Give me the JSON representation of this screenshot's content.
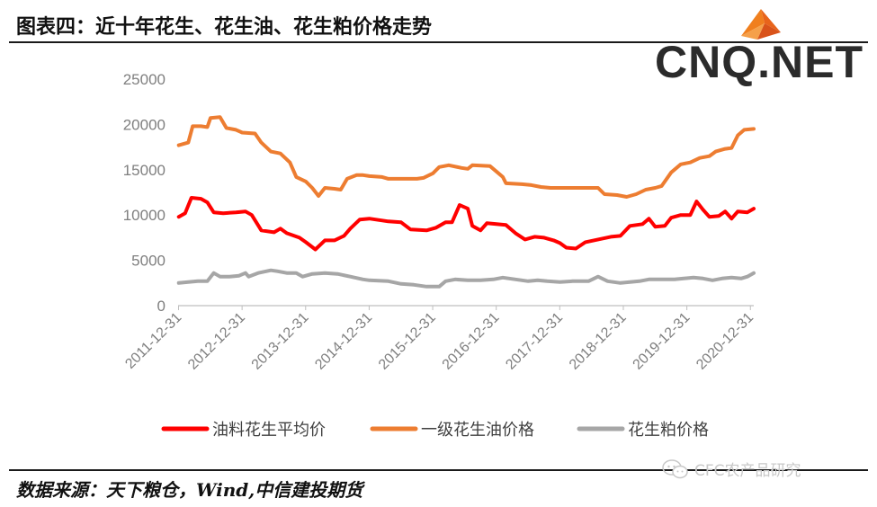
{
  "header": {
    "title": "图表四：近十年花生、花生油、花生粕价格走势",
    "logo_text": "CNQ.NET"
  },
  "footer": {
    "source": "数据来源：天下粮仓，Wind,中信建投期货",
    "watermark": "CFC农产品研究"
  },
  "icons": {
    "logo": "origami-bird-logo",
    "watermark": "wechat-icon"
  },
  "colors": {
    "oil_peanut": "#ff0000",
    "peanut_oil": "#ed7d31",
    "peanut_meal": "#a6a6a6",
    "axis": "#bfbfbf",
    "tick_text": "#7f7f7f"
  },
  "chart_data": {
    "type": "line",
    "title": "",
    "ylim": [
      0,
      25000
    ],
    "yticks": [
      "0",
      "5000",
      "10000",
      "15000",
      "20000",
      "25000"
    ],
    "xticks": [
      "2011-12-31",
      "2012-12-31",
      "2013-12-31",
      "2014-12-31",
      "2015-12-31",
      "2016-12-31",
      "2017-12-31",
      "2018-12-31",
      "2019-12-31",
      "2020-12-31"
    ],
    "x_range": [
      2011.99,
      2021.05
    ],
    "legend_position": "bottom",
    "series": [
      {
        "name": "油料花生平均价",
        "color": "#ff0000",
        "points": [
          [
            2012.0,
            9800
          ],
          [
            2012.1,
            10200
          ],
          [
            2012.2,
            11900
          ],
          [
            2012.35,
            11800
          ],
          [
            2012.45,
            11400
          ],
          [
            2012.55,
            10300
          ],
          [
            2012.7,
            10200
          ],
          [
            2012.9,
            10300
          ],
          [
            2013.05,
            10400
          ],
          [
            2013.15,
            10000
          ],
          [
            2013.3,
            8300
          ],
          [
            2013.5,
            8100
          ],
          [
            2013.6,
            8500
          ],
          [
            2013.7,
            8000
          ],
          [
            2013.9,
            7500
          ],
          [
            2014.0,
            7000
          ],
          [
            2014.15,
            6200
          ],
          [
            2014.3,
            7200
          ],
          [
            2014.45,
            7200
          ],
          [
            2014.6,
            7700
          ],
          [
            2014.7,
            8500
          ],
          [
            2014.85,
            9500
          ],
          [
            2015.0,
            9600
          ],
          [
            2015.3,
            9300
          ],
          [
            2015.5,
            9200
          ],
          [
            2015.65,
            8400
          ],
          [
            2015.9,
            8300
          ],
          [
            2016.05,
            8600
          ],
          [
            2016.2,
            9200
          ],
          [
            2016.3,
            9200
          ],
          [
            2016.42,
            11100
          ],
          [
            2016.55,
            10700
          ],
          [
            2016.62,
            8800
          ],
          [
            2016.75,
            8300
          ],
          [
            2016.85,
            9100
          ],
          [
            2017.0,
            9000
          ],
          [
            2017.15,
            8900
          ],
          [
            2017.3,
            8000
          ],
          [
            2017.45,
            7300
          ],
          [
            2017.6,
            7600
          ],
          [
            2017.75,
            7500
          ],
          [
            2017.9,
            7200
          ],
          [
            2018.0,
            6900
          ],
          [
            2018.1,
            6400
          ],
          [
            2018.25,
            6300
          ],
          [
            2018.4,
            7000
          ],
          [
            2018.6,
            7300
          ],
          [
            2018.8,
            7600
          ],
          [
            2018.95,
            7700
          ],
          [
            2019.1,
            8800
          ],
          [
            2019.3,
            9000
          ],
          [
            2019.4,
            9600
          ],
          [
            2019.5,
            8700
          ],
          [
            2019.65,
            8800
          ],
          [
            2019.75,
            9700
          ],
          [
            2019.9,
            10000
          ],
          [
            2020.05,
            10000
          ],
          [
            2020.15,
            11500
          ],
          [
            2020.25,
            10600
          ],
          [
            2020.35,
            9800
          ],
          [
            2020.5,
            9900
          ],
          [
            2020.6,
            10400
          ],
          [
            2020.7,
            9600
          ],
          [
            2020.8,
            10400
          ],
          [
            2020.95,
            10300
          ],
          [
            2021.05,
            10700
          ]
        ]
      },
      {
        "name": "一级花生油价格",
        "color": "#ed7d31",
        "points": [
          [
            2012.0,
            17700
          ],
          [
            2012.15,
            18000
          ],
          [
            2012.22,
            19800
          ],
          [
            2012.35,
            19800
          ],
          [
            2012.45,
            19700
          ],
          [
            2012.5,
            20700
          ],
          [
            2012.65,
            20800
          ],
          [
            2012.75,
            19600
          ],
          [
            2012.9,
            19400
          ],
          [
            2013.0,
            19100
          ],
          [
            2013.2,
            19000
          ],
          [
            2013.3,
            18000
          ],
          [
            2013.45,
            17000
          ],
          [
            2013.6,
            16800
          ],
          [
            2013.75,
            15800
          ],
          [
            2013.85,
            14200
          ],
          [
            2014.0,
            13700
          ],
          [
            2014.1,
            13000
          ],
          [
            2014.2,
            12100
          ],
          [
            2014.3,
            13000
          ],
          [
            2014.45,
            12900
          ],
          [
            2014.55,
            12800
          ],
          [
            2014.65,
            14000
          ],
          [
            2014.8,
            14400
          ],
          [
            2014.9,
            14400
          ],
          [
            2015.0,
            14300
          ],
          [
            2015.2,
            14200
          ],
          [
            2015.3,
            14000
          ],
          [
            2015.55,
            14000
          ],
          [
            2015.75,
            14000
          ],
          [
            2015.85,
            14100
          ],
          [
            2016.0,
            14600
          ],
          [
            2016.1,
            15300
          ],
          [
            2016.25,
            15500
          ],
          [
            2016.45,
            15200
          ],
          [
            2016.55,
            15100
          ],
          [
            2016.62,
            15500
          ],
          [
            2016.9,
            15400
          ],
          [
            2017.0,
            14800
          ],
          [
            2017.1,
            14200
          ],
          [
            2017.15,
            13500
          ],
          [
            2017.4,
            13400
          ],
          [
            2017.55,
            13300
          ],
          [
            2017.7,
            13100
          ],
          [
            2017.85,
            13000
          ],
          [
            2018.0,
            13000
          ],
          [
            2018.4,
            13000
          ],
          [
            2018.6,
            13000
          ],
          [
            2018.7,
            12300
          ],
          [
            2018.9,
            12200
          ],
          [
            2019.05,
            12000
          ],
          [
            2019.2,
            12300
          ],
          [
            2019.35,
            12800
          ],
          [
            2019.5,
            13000
          ],
          [
            2019.6,
            13200
          ],
          [
            2019.75,
            14700
          ],
          [
            2019.9,
            15600
          ],
          [
            2020.05,
            15800
          ],
          [
            2020.2,
            16300
          ],
          [
            2020.35,
            16500
          ],
          [
            2020.45,
            17000
          ],
          [
            2020.6,
            17300
          ],
          [
            2020.7,
            17400
          ],
          [
            2020.8,
            18800
          ],
          [
            2020.9,
            19400
          ],
          [
            2021.05,
            19500
          ]
        ]
      },
      {
        "name": "花生粕价格",
        "color": "#a6a6a6",
        "points": [
          [
            2012.0,
            2500
          ],
          [
            2012.15,
            2600
          ],
          [
            2012.3,
            2700
          ],
          [
            2012.45,
            2700
          ],
          [
            2012.55,
            3600
          ],
          [
            2012.65,
            3200
          ],
          [
            2012.8,
            3200
          ],
          [
            2012.95,
            3300
          ],
          [
            2013.05,
            3600
          ],
          [
            2013.1,
            3200
          ],
          [
            2013.25,
            3600
          ],
          [
            2013.45,
            3900
          ],
          [
            2013.55,
            3800
          ],
          [
            2013.7,
            3600
          ],
          [
            2013.85,
            3600
          ],
          [
            2013.95,
            3200
          ],
          [
            2014.1,
            3500
          ],
          [
            2014.3,
            3600
          ],
          [
            2014.5,
            3500
          ],
          [
            2014.7,
            3200
          ],
          [
            2014.9,
            2900
          ],
          [
            2015.0,
            2800
          ],
          [
            2015.3,
            2700
          ],
          [
            2015.5,
            2400
          ],
          [
            2015.7,
            2300
          ],
          [
            2015.9,
            2100
          ],
          [
            2016.1,
            2100
          ],
          [
            2016.2,
            2700
          ],
          [
            2016.35,
            2900
          ],
          [
            2016.55,
            2800
          ],
          [
            2016.75,
            2800
          ],
          [
            2016.95,
            2900
          ],
          [
            2017.1,
            3100
          ],
          [
            2017.3,
            2900
          ],
          [
            2017.5,
            2700
          ],
          [
            2017.65,
            2800
          ],
          [
            2017.8,
            2700
          ],
          [
            2018.0,
            2600
          ],
          [
            2018.2,
            2700
          ],
          [
            2018.45,
            2700
          ],
          [
            2018.6,
            3200
          ],
          [
            2018.75,
            2700
          ],
          [
            2018.95,
            2500
          ],
          [
            2019.1,
            2600
          ],
          [
            2019.25,
            2700
          ],
          [
            2019.4,
            2900
          ],
          [
            2019.6,
            2900
          ],
          [
            2019.8,
            2900
          ],
          [
            2019.95,
            3000
          ],
          [
            2020.1,
            3100
          ],
          [
            2020.25,
            3000
          ],
          [
            2020.4,
            2800
          ],
          [
            2020.55,
            3000
          ],
          [
            2020.7,
            3100
          ],
          [
            2020.85,
            3000
          ],
          [
            2020.95,
            3200
          ],
          [
            2021.05,
            3600
          ]
        ]
      }
    ]
  }
}
